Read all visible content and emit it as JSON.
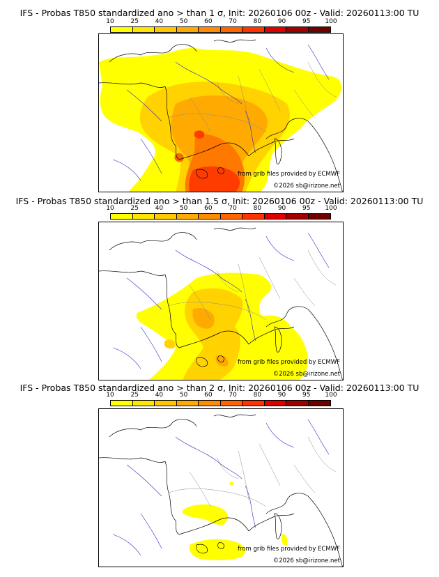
{
  "colorbar": {
    "labels": [
      "10",
      "25",
      "40",
      "50",
      "60",
      "70",
      "80",
      "90",
      "95",
      "100"
    ],
    "colors": [
      "#ffff00",
      "#ffe600",
      "#ffc800",
      "#ffaa00",
      "#ff8c00",
      "#ff6400",
      "#ff3200",
      "#dc0000",
      "#a00000",
      "#6e0000"
    ]
  },
  "panels": [
    {
      "title": "IFS - Probas T850  standardized ano > than 1 σ, Init: 20260106 00z - Valid: 20260113:00 TU",
      "credit_line1": "from grib files provided by ECMWF",
      "credit_line2": "©2026 sb@irizone.net"
    },
    {
      "title": "IFS - Probas T850  standardized ano > than 1.5 σ, Init: 20260106 00z - Valid: 20260113:00 TU",
      "credit_line1": "from grib files provided by ECMWF",
      "credit_line2": "©2026 sb@irizone.net"
    },
    {
      "title": "IFS - Probas T850  standardized ano > than 2 σ, Init: 20260106 00z - Valid: 20260113:00 TU",
      "credit_line1": "from grib files provided by ECMWF",
      "credit_line2": "©2026 sb@irizone.net"
    }
  ]
}
